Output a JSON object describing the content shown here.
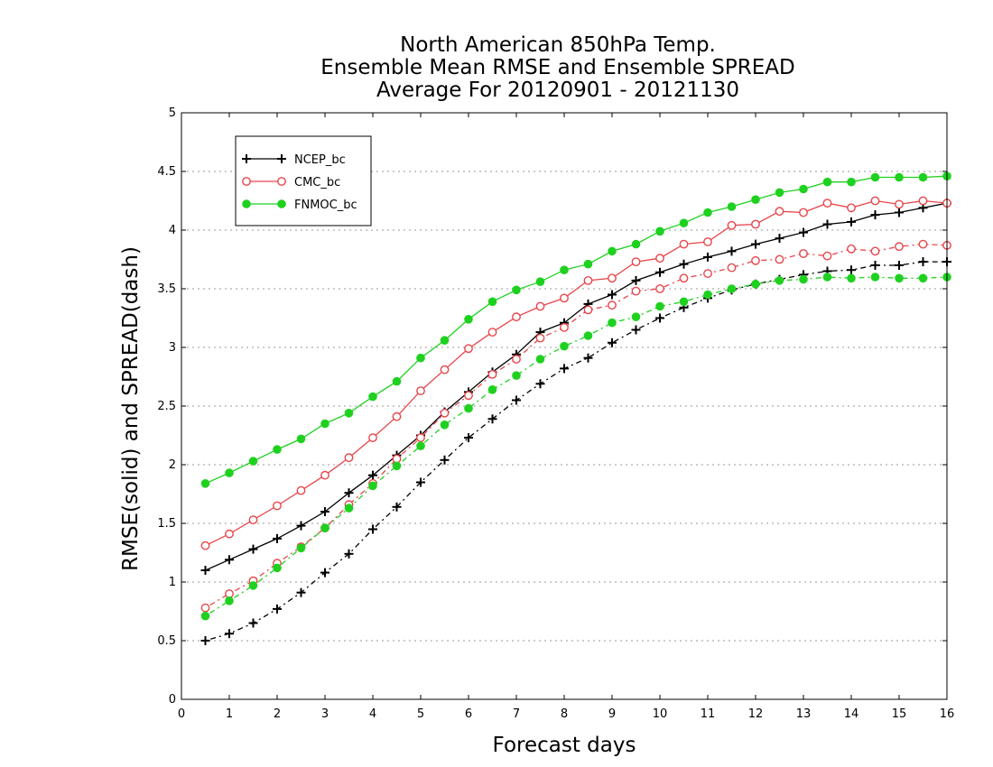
{
  "chart_data": {
    "type": "line",
    "title_lines": [
      "North American 850hPa Temp.",
      "Ensemble Mean RMSE and Ensemble SPREAD",
      "Average For 20120901 - 20121130"
    ],
    "xlabel": "Forecast days",
    "ylabel": "RMSE(solid) and SPREAD(dash)",
    "xlim": [
      0,
      16
    ],
    "ylim": [
      0,
      5
    ],
    "xticks": [
      "0",
      "1",
      "2",
      "3",
      "4",
      "5",
      "6",
      "7",
      "8",
      "9",
      "10",
      "11",
      "12",
      "13",
      "14",
      "15",
      "16"
    ],
    "yticks": [
      "0",
      "0.5",
      "1",
      "1.5",
      "2",
      "2.5",
      "3",
      "3.5",
      "4",
      "4.5",
      "5"
    ],
    "grid": "horizontal dotted",
    "legend_position": "top-left",
    "x": [
      0.5,
      1,
      1.5,
      2,
      2.5,
      3,
      3.5,
      4,
      4.5,
      5,
      5.5,
      6,
      6.5,
      7,
      7.5,
      8,
      8.5,
      9,
      9.5,
      10,
      10.5,
      11,
      11.5,
      12,
      12.5,
      13,
      13.5,
      14,
      14.5,
      15,
      15.5,
      16
    ],
    "series": [
      {
        "name": "NCEP_bc",
        "color": "#000000",
        "marker": "plus",
        "rmse": [
          1.1,
          1.19,
          1.28,
          1.37,
          1.48,
          1.6,
          1.76,
          1.91,
          2.08,
          2.25,
          2.45,
          2.62,
          2.79,
          2.94,
          3.13,
          3.21,
          3.37,
          3.45,
          3.57,
          3.64,
          3.71,
          3.77,
          3.82,
          3.88,
          3.93,
          3.98,
          4.05,
          4.07,
          4.13,
          4.15,
          4.19,
          4.23
        ],
        "spread": [
          0.5,
          0.56,
          0.65,
          0.77,
          0.91,
          1.08,
          1.24,
          1.45,
          1.64,
          1.85,
          2.04,
          2.23,
          2.39,
          2.55,
          2.69,
          2.82,
          2.91,
          3.04,
          3.15,
          3.25,
          3.34,
          3.42,
          3.49,
          3.54,
          3.58,
          3.62,
          3.65,
          3.66,
          3.7,
          3.7,
          3.73,
          3.73
        ]
      },
      {
        "name": "CMC_bc",
        "color": "#e8454a",
        "marker": "open-circle",
        "rmse": [
          1.31,
          1.41,
          1.53,
          1.65,
          1.78,
          1.91,
          2.06,
          2.23,
          2.41,
          2.63,
          2.81,
          2.99,
          3.13,
          3.26,
          3.35,
          3.42,
          3.57,
          3.59,
          3.73,
          3.76,
          3.88,
          3.9,
          4.04,
          4.05,
          4.16,
          4.15,
          4.23,
          4.19,
          4.25,
          4.22,
          4.25,
          4.23
        ],
        "spread": [
          0.78,
          0.9,
          1.01,
          1.16,
          1.3,
          1.46,
          1.66,
          1.84,
          2.05,
          2.23,
          2.44,
          2.59,
          2.77,
          2.9,
          3.08,
          3.17,
          3.32,
          3.36,
          3.48,
          3.5,
          3.59,
          3.63,
          3.68,
          3.74,
          3.75,
          3.8,
          3.78,
          3.84,
          3.82,
          3.86,
          3.88,
          3.87
        ]
      },
      {
        "name": "FNMOC_bc",
        "color": "#1fd11f",
        "marker": "filled-circle",
        "rmse": [
          1.84,
          1.93,
          2.03,
          2.13,
          2.22,
          2.35,
          2.44,
          2.58,
          2.71,
          2.91,
          3.06,
          3.24,
          3.39,
          3.49,
          3.56,
          3.66,
          3.71,
          3.82,
          3.88,
          3.99,
          4.06,
          4.15,
          4.2,
          4.26,
          4.32,
          4.35,
          4.41,
          4.41,
          4.45,
          4.45,
          4.45,
          4.46
        ],
        "spread": [
          0.71,
          0.84,
          0.97,
          1.12,
          1.29,
          1.46,
          1.63,
          1.82,
          1.99,
          2.16,
          2.34,
          2.48,
          2.64,
          2.76,
          2.9,
          3.01,
          3.1,
          3.21,
          3.26,
          3.35,
          3.39,
          3.45,
          3.5,
          3.54,
          3.57,
          3.58,
          3.6,
          3.59,
          3.6,
          3.59,
          3.59,
          3.6
        ]
      }
    ]
  }
}
